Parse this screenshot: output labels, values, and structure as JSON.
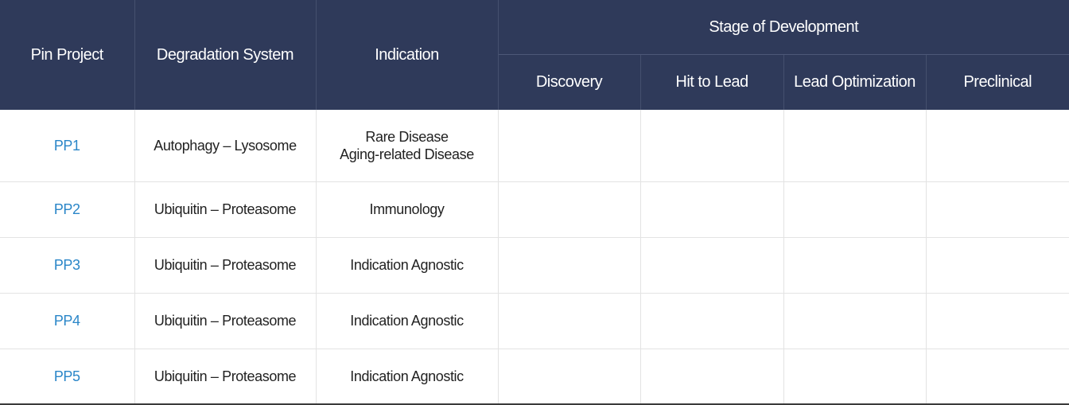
{
  "table": {
    "headers": {
      "project": "Pin Project",
      "system": "Degradation System",
      "indication": "Indication",
      "stage_group": "Stage of Development",
      "stages": [
        "Discovery",
        "Hit to Lead",
        "Lead Optimization",
        "Preclinical"
      ]
    },
    "rows": [
      {
        "project": "PP1",
        "system": "Autophagy – Lysosome",
        "indication": [
          "Rare Disease",
          "Aging-related Disease"
        ]
      },
      {
        "project": "PP2",
        "system": "Ubiquitin – Proteasome",
        "indication": [
          "Immunology"
        ]
      },
      {
        "project": "PP3",
        "system": "Ubiquitin – Proteasome",
        "indication": [
          "Indication Agnostic"
        ]
      },
      {
        "project": "PP4",
        "system": "Ubiquitin – Proteasome",
        "indication": [
          "Indication Agnostic"
        ]
      },
      {
        "project": "PP5",
        "system": "Ubiquitin – Proteasome",
        "indication": [
          "Indication Agnostic"
        ]
      }
    ]
  },
  "colors": {
    "header_bg": "#2f3a5a",
    "project_link": "#2a86c8"
  }
}
